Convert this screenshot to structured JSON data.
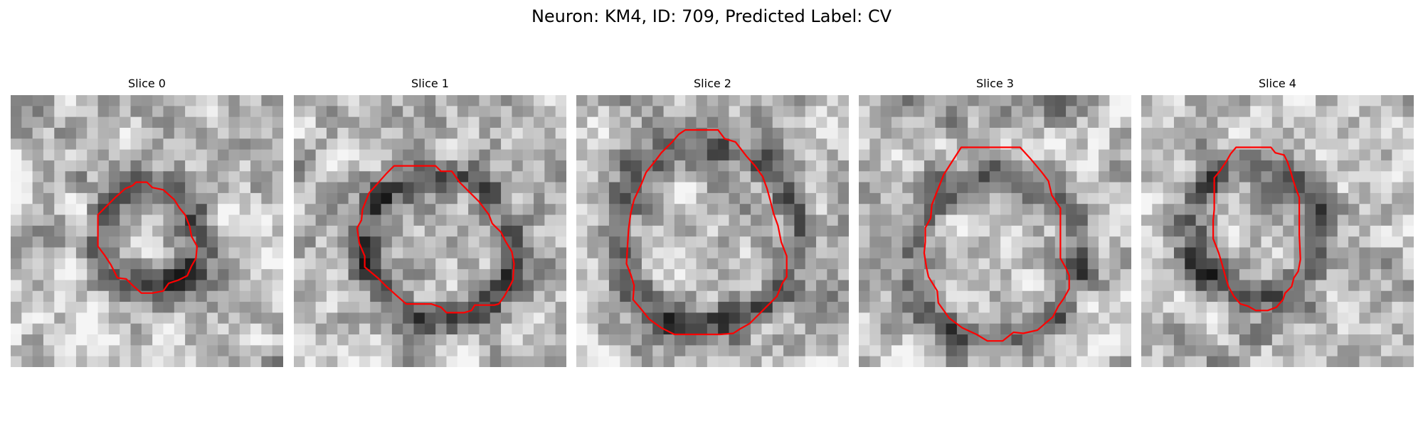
{
  "figure": {
    "title": "Neuron: KM4, ID: 709, Predicted Label: CV",
    "contour_color": "#ff0000",
    "colormap": "gray"
  },
  "panels": [
    {
      "title": "Slice 0",
      "seed": 11
    },
    {
      "title": "Slice 1",
      "seed": 23
    },
    {
      "title": "Slice 2",
      "seed": 37
    },
    {
      "title": "Slice 3",
      "seed": 49
    },
    {
      "title": "Slice 4",
      "seed": 61
    }
  ]
}
